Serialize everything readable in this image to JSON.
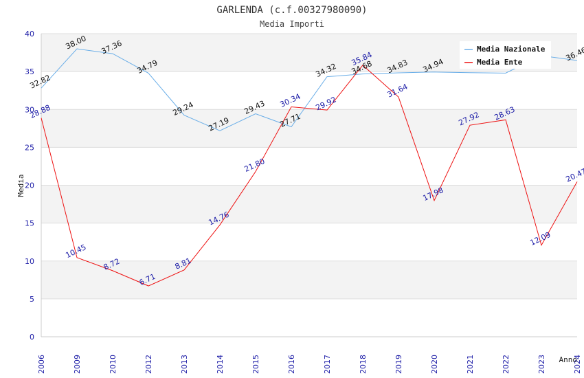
{
  "chart_data": {
    "type": "line",
    "title": "GARLENDA (c.f.00327980090)",
    "subtitle": "Media Importi",
    "xlabel": "Anno",
    "ylabel": "Media",
    "ylim": [
      0,
      40
    ],
    "yticks": [
      0,
      5,
      10,
      15,
      20,
      25,
      30,
      35,
      40
    ],
    "categories": [
      "2006",
      "2009",
      "2010",
      "2012",
      "2013",
      "2014",
      "2015",
      "2016",
      "2017",
      "2018",
      "2019",
      "2020",
      "2021",
      "2022",
      "2023",
      "2024"
    ],
    "grid": "horizontal alternating bands",
    "legend_position": "top-right",
    "series": [
      {
        "name": "Media Nazionale",
        "color": "#6aaee8",
        "values": [
          32.82,
          38.0,
          37.36,
          34.79,
          29.24,
          27.19,
          29.43,
          27.71,
          34.32,
          34.68,
          34.83,
          34.94,
          34.85,
          34.8,
          37.1,
          36.46
        ],
        "labels": [
          "32.82",
          "38.00",
          "37.36",
          "34.79",
          "29.24",
          "27.19",
          "29.43",
          "27.71",
          "34.32",
          "34.68",
          "34.83",
          "34.94",
          "",
          "",
          "",
          "36.46"
        ]
      },
      {
        "name": "Media Ente",
        "color": "#ee1111",
        "values": [
          28.88,
          10.45,
          8.72,
          6.71,
          8.81,
          14.76,
          21.8,
          30.34,
          29.92,
          35.84,
          31.64,
          17.98,
          27.92,
          28.63,
          12.09,
          20.47
        ],
        "labels": [
          "28.88",
          "10.45",
          "8.72",
          "6.71",
          "8.81",
          "14.76",
          "21.80",
          "30.34",
          "29.92",
          "35.84",
          "31.64",
          "17.98",
          "27.92",
          "28.63",
          "12.09",
          "20.47"
        ]
      }
    ]
  }
}
